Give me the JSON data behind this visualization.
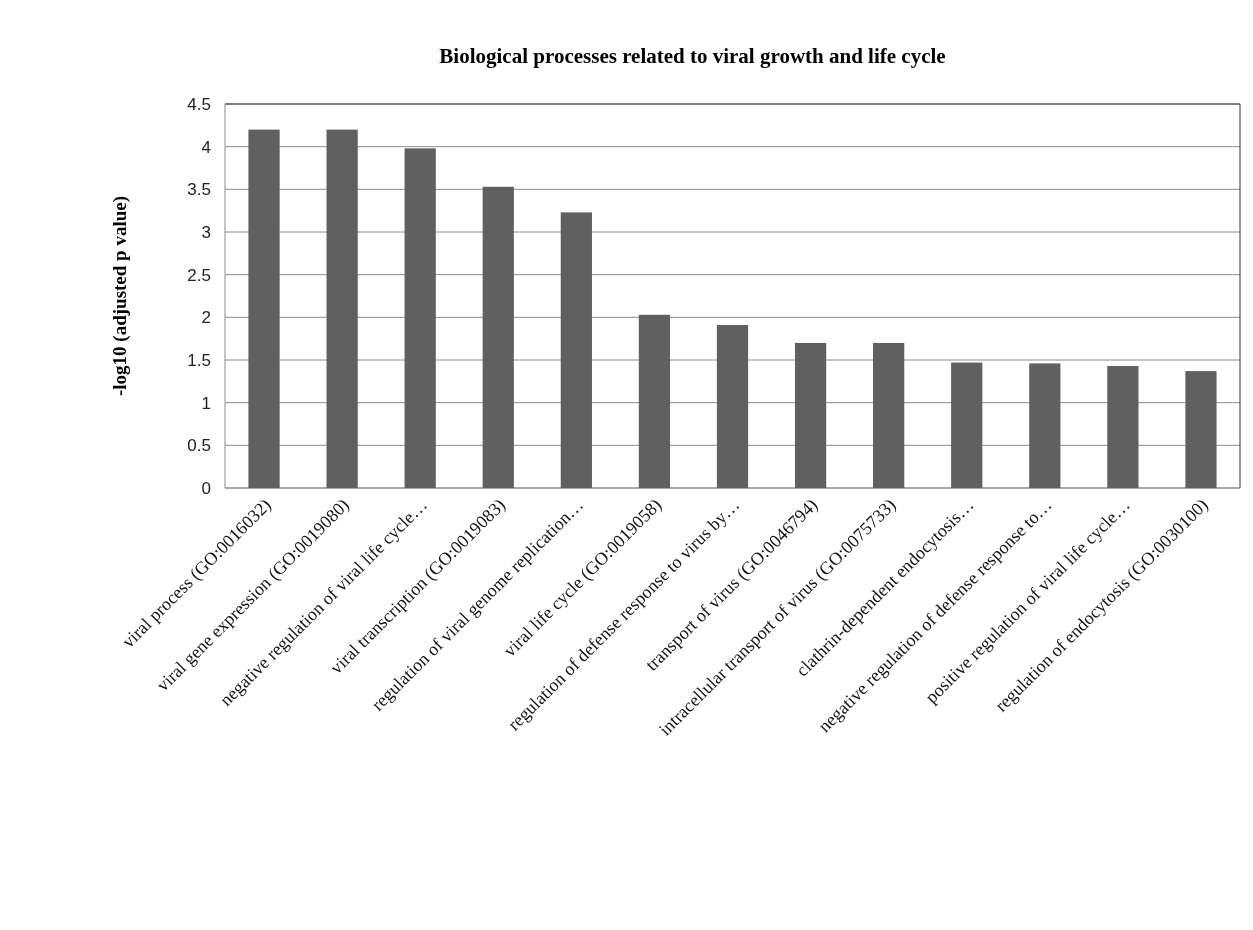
{
  "chart_data": {
    "type": "bar",
    "title": "Biological processes related to viral growth and life cycle",
    "ylabel": "-log10 (adjusted p value)",
    "categories": [
      "viral process (GO:0016032)",
      "viral gene expression (GO:0019080)",
      "negative regulation of viral life cycle…",
      "viral transcription (GO:0019083)",
      "regulation of viral genome replication…",
      "viral life cycle (GO:0019058)",
      "regulation of defense response to virus by…",
      "transport of virus (GO:0046794)",
      "intracellular transport of virus (GO:0075733)",
      "clathrin-dependent endocytosis…",
      "negative regulation of defense response to…",
      "positive regulation of viral life cycle…",
      "regulation of endocytosis (GO:0030100)"
    ],
    "values": [
      4.2,
      4.2,
      3.98,
      3.53,
      3.23,
      2.03,
      1.91,
      1.7,
      1.7,
      1.47,
      1.46,
      1.43,
      1.37
    ],
    "color": "#606060",
    "ylim": [
      0,
      4.5
    ],
    "yticks": [
      0,
      0.5,
      1,
      1.5,
      2,
      2.5,
      3,
      3.5,
      4,
      4.5
    ],
    "grid": "y"
  }
}
